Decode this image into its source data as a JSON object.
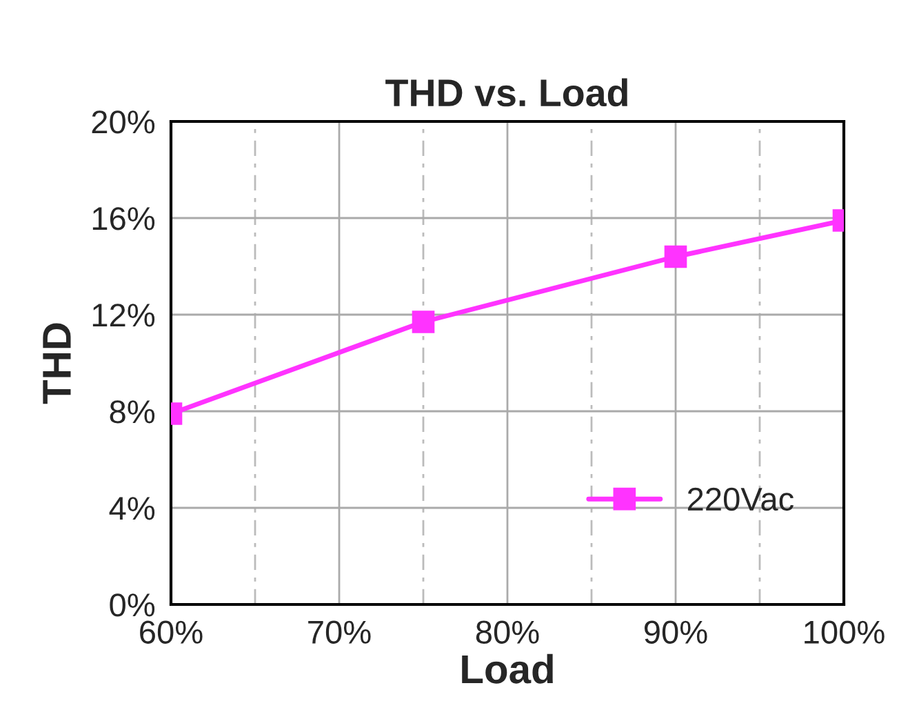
{
  "chart_data": {
    "type": "line",
    "title": "THD vs. Load",
    "xlabel": "Load",
    "ylabel": "THD",
    "x": [
      60,
      75,
      90,
      100
    ],
    "series": [
      {
        "name": "220Vac",
        "color": "#ff33ff",
        "values": [
          7.9,
          11.7,
          14.4,
          15.9
        ]
      }
    ],
    "xlim": [
      60,
      100
    ],
    "xticks": [
      {
        "value": 60,
        "label": "60%"
      },
      {
        "value": 65,
        "label": null
      },
      {
        "value": 70,
        "label": "70%"
      },
      {
        "value": 75,
        "label": null
      },
      {
        "value": 80,
        "label": "80%"
      },
      {
        "value": 85,
        "label": null
      },
      {
        "value": 90,
        "label": "90%"
      },
      {
        "value": 95,
        "label": null
      },
      {
        "value": 100,
        "label": "100%"
      }
    ],
    "ylim": [
      0,
      20
    ],
    "yticks": [
      {
        "value": 0,
        "label": "0%"
      },
      {
        "value": 4,
        "label": "4%"
      },
      {
        "value": 8,
        "label": "8%"
      },
      {
        "value": 12,
        "label": "12%"
      },
      {
        "value": 16,
        "label": "16%"
      },
      {
        "value": 20,
        "label": "20%"
      }
    ],
    "grid": true,
    "legend": "bottom right",
    "marker": "square",
    "line_style": "solid"
  }
}
